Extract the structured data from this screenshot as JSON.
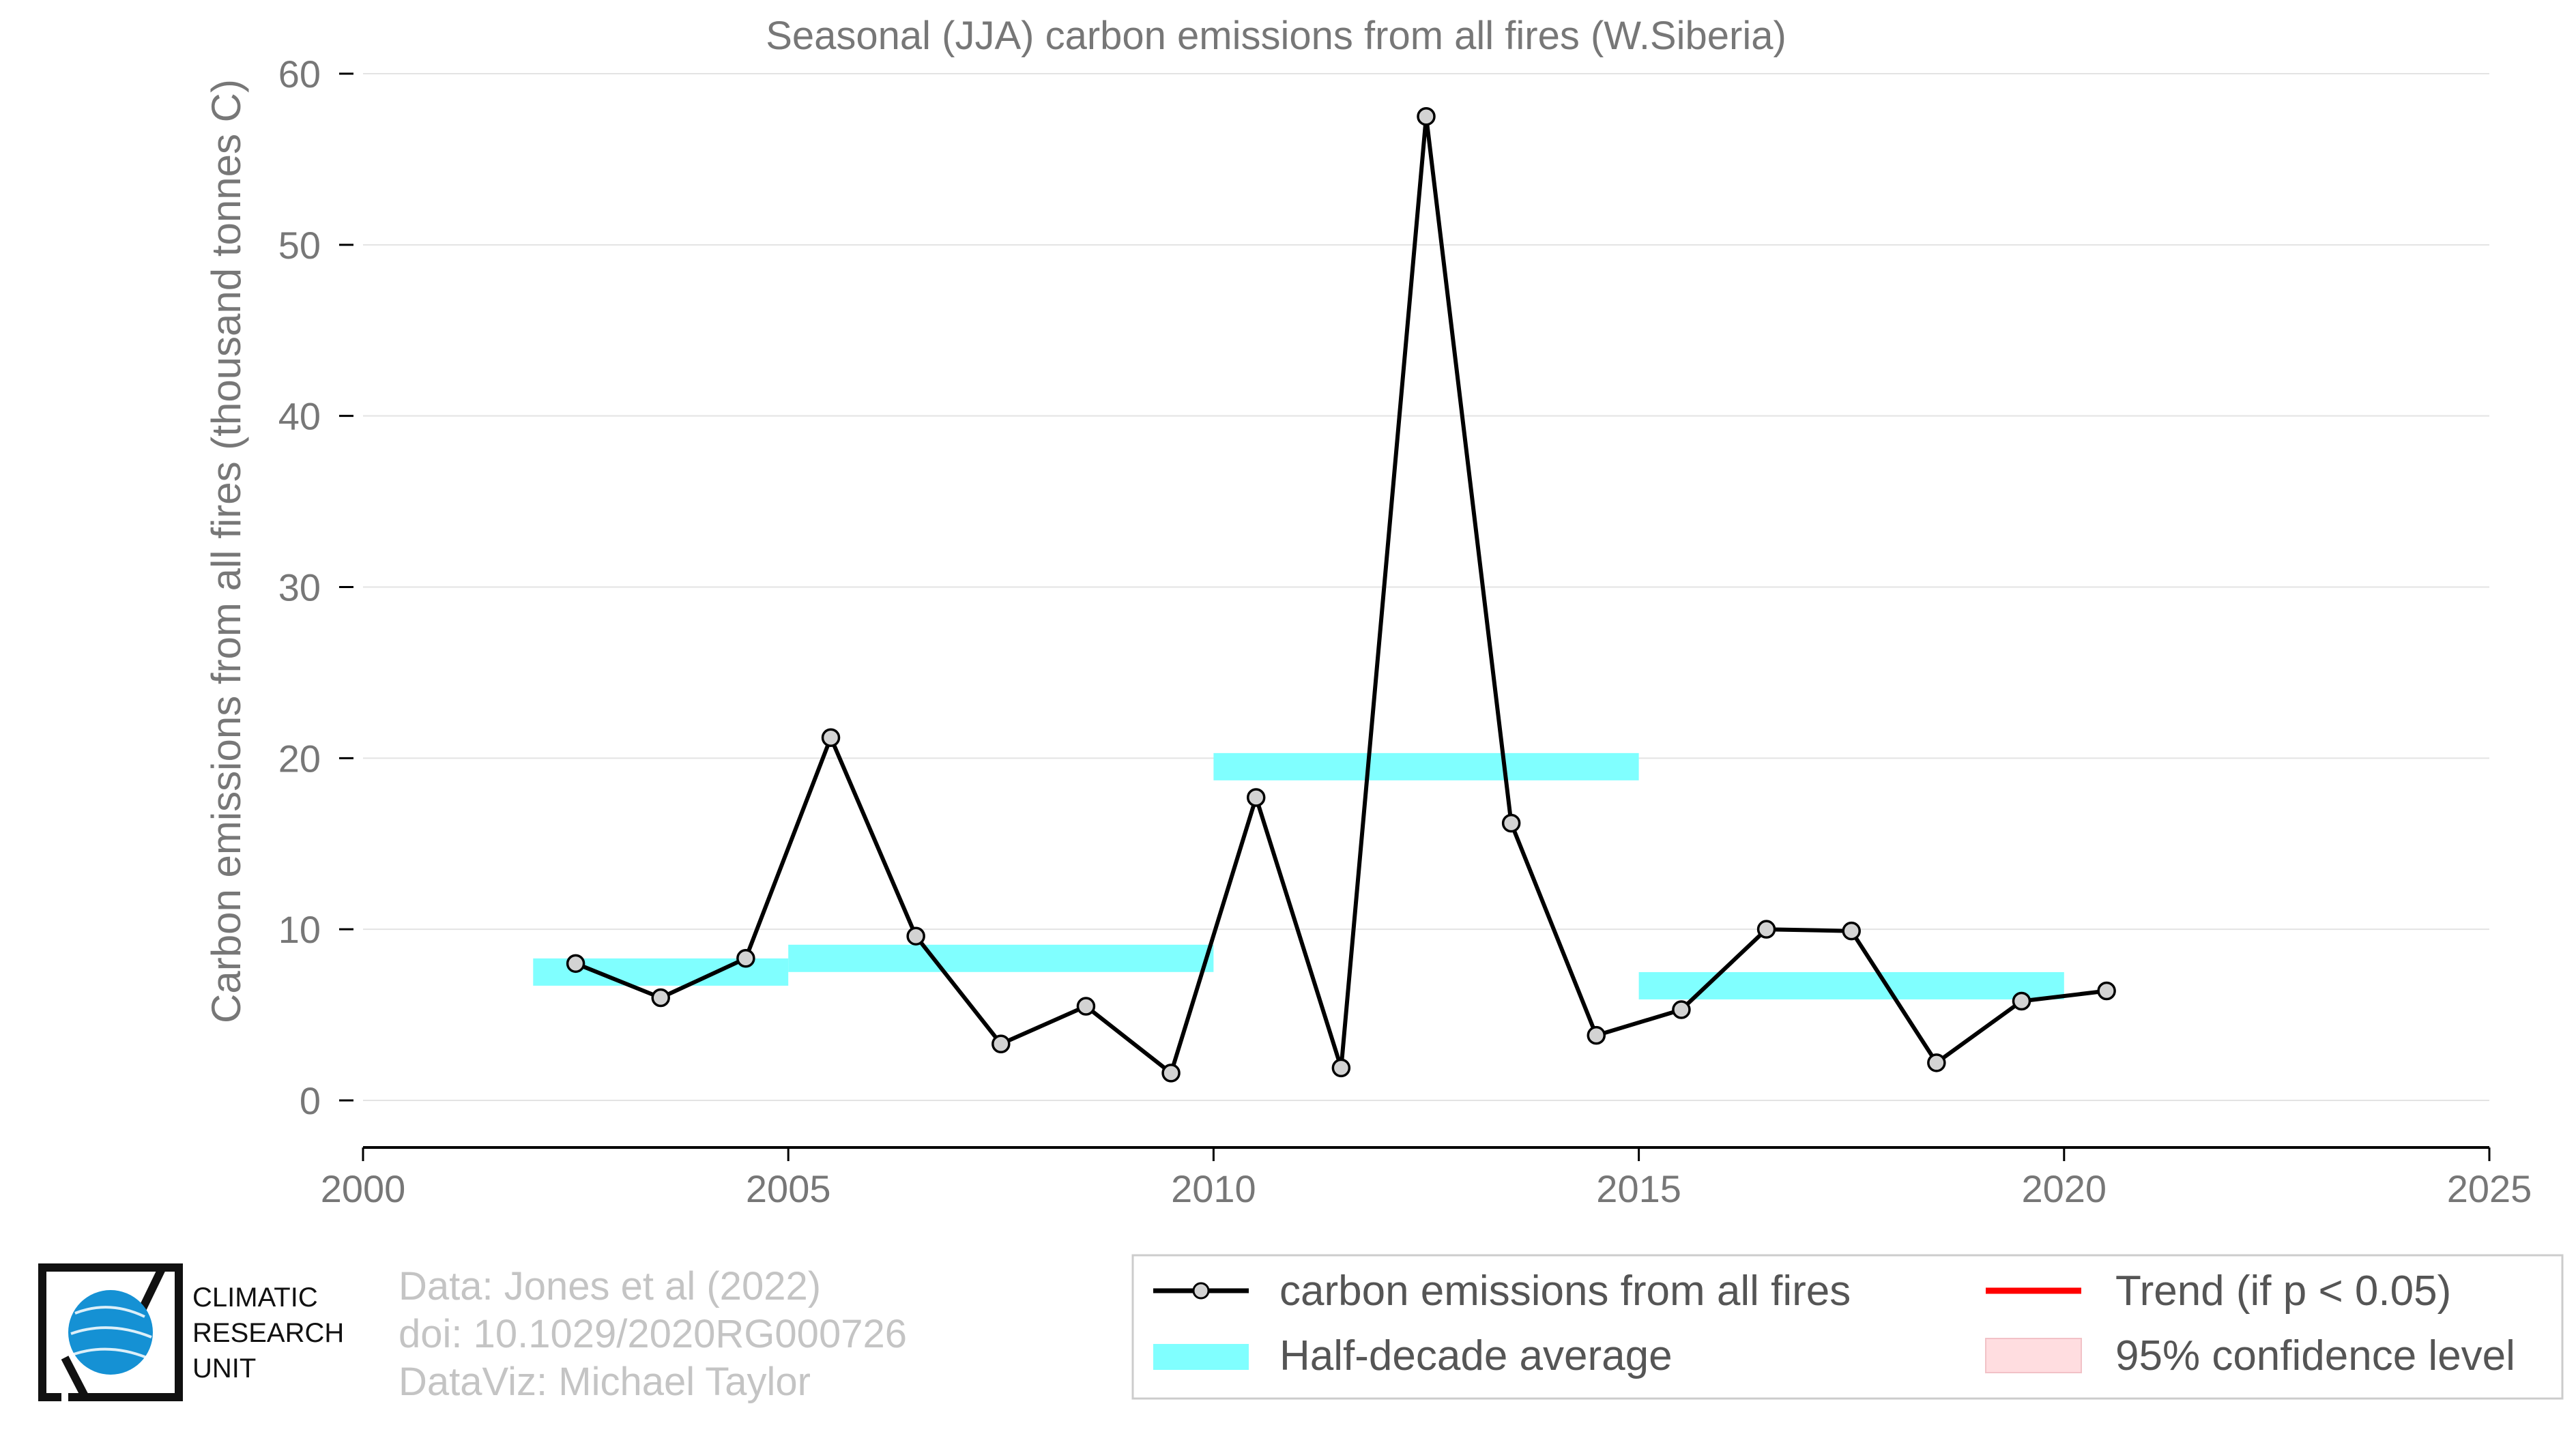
{
  "chart_data": {
    "type": "line",
    "title": "Seasonal (JJA) carbon emissions from all fires (W.Siberia)",
    "xlabel": "",
    "ylabel": "Carbon emissions from all fires (thousand tonnes C)",
    "xlim": [
      2000,
      2025
    ],
    "ylim": [
      0,
      60
    ],
    "xticks": [
      2000,
      2005,
      2010,
      2015,
      2020,
      2025
    ],
    "yticks": [
      0,
      10,
      20,
      30,
      40,
      50,
      60
    ],
    "grid": "horizontal",
    "legend_position": "bottom-right",
    "series": [
      {
        "name": "carbon emissions from all fires",
        "color": "#000000",
        "marker_fill": "#d3d3d3",
        "x": [
          2002.5,
          2003.5,
          2004.5,
          2005.5,
          2006.5,
          2007.5,
          2008.5,
          2009.5,
          2010.5,
          2011.5,
          2012.5,
          2013.5,
          2014.5,
          2015.5,
          2016.5,
          2017.5,
          2018.5,
          2019.5,
          2020.5
        ],
        "y": [
          8.0,
          6.0,
          8.3,
          21.2,
          9.6,
          3.3,
          5.5,
          1.6,
          17.7,
          1.9,
          57.5,
          16.2,
          3.8,
          5.3,
          10.0,
          9.9,
          2.2,
          5.8,
          6.4
        ]
      }
    ],
    "half_decade_average": {
      "name": "Half-decade average",
      "color": "#80ffff",
      "segments": [
        {
          "x0": 2002,
          "x1": 2005,
          "y": 7.5
        },
        {
          "x0": 2005,
          "x1": 2010,
          "y": 8.3
        },
        {
          "x0": 2010,
          "x1": 2015,
          "y": 19.5
        },
        {
          "x0": 2015,
          "x1": 2020,
          "y": 6.7
        }
      ]
    },
    "legend": [
      {
        "label": "carbon emissions from all fires",
        "kind": "line-marker",
        "color": "#000000"
      },
      {
        "label": "Trend (if p < 0.05)",
        "kind": "line",
        "color": "#ff0000"
      },
      {
        "label": "Half-decade average",
        "kind": "band",
        "color": "#80ffff"
      },
      {
        "label": "95% confidence level",
        "kind": "patch",
        "color": "#ffdde0"
      }
    ]
  },
  "credits": {
    "line1": "Data: Jones et al (2022)",
    "line2": "doi: 10.1029/2020RG000726",
    "line3": "DataViz: Michael Taylor"
  },
  "logo": {
    "line1": "CLIMATIC",
    "line2": "RESEARCH",
    "line3": "UNIT"
  }
}
